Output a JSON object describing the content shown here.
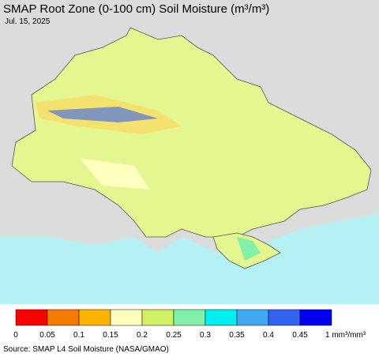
{
  "header": {
    "title": "SMAP Root Zone (0-100 cm) Soil Moisture (m³/m³)",
    "date": "Jul. 15, 2025"
  },
  "legend": {
    "colors": [
      "#ff0000",
      "#f57a00",
      "#fcb400",
      "#ffffc0",
      "#d2f064",
      "#82f0a8",
      "#00f0f0",
      "#40a8f0",
      "#3264f0",
      "#0000f0"
    ],
    "ticks": [
      "0",
      "0.05",
      "0.1",
      "0.15",
      "0.2",
      "0.25",
      "0.3",
      "0.35",
      "0.4",
      "0.45"
    ],
    "unit": "1 mm³/mm³"
  },
  "footer": {
    "source": "Source: SMAP L4 Soil Moisture (NASA/GMAO)"
  }
}
